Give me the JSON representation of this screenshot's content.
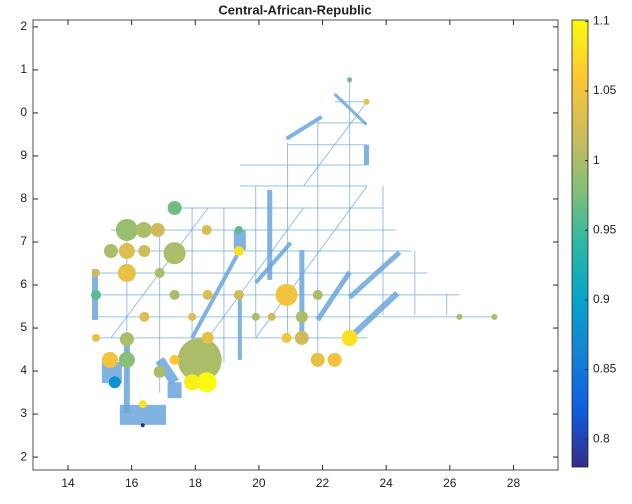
{
  "chart_data": {
    "type": "network",
    "title": "Central-African-Republic",
    "xlim": [
      12.9,
      29.4
    ],
    "ylim": [
      1.7,
      12.16
    ],
    "xticks": [
      14,
      16,
      18,
      20,
      22,
      24,
      26,
      28
    ],
    "yticks": [
      2,
      3,
      4,
      5,
      6,
      7,
      8,
      9,
      {
        "value": 10,
        "label": "0"
      },
      {
        "value": 11,
        "label": "1"
      },
      {
        "value": 12,
        "label": "2"
      }
    ],
    "clim": [
      0.78,
      1.101
    ],
    "cticks": [
      0.8,
      0.85,
      0.9,
      0.95,
      1,
      1.05,
      1.1
    ],
    "colormap": [
      "#352a87",
      "#0f5cdd",
      "#1481d6",
      "#06a4ca",
      "#2eb7a4",
      "#87bf77",
      "#d1bb59",
      "#fec832",
      "#f9fb0e"
    ],
    "edge_color": "#6aa6dc",
    "edges": {
      "x1": [
        14.85,
        14.85,
        14.85,
        14.85,
        15.35,
        15.35,
        17.35,
        19.4,
        19.4,
        20.9,
        21.85,
        22.38,
        15.85,
        16.88,
        17.9,
        18.9,
        19.9,
        20.9,
        21.85,
        22.85,
        23.9,
        24.9,
        25.9,
        15.35,
        17.9,
        19.9,
        21.4,
        15.63,
        15.38,
        16.88,
        17.35,
        19.4,
        14.85,
        15.85,
        21.35,
        20.34,
        22.85,
        21.85,
        22.85,
        23.38,
        20.87,
        23.38,
        19.9,
        19.4,
        17.9
      ],
      "y1": [
        4.77,
        5.26,
        5.77,
        6.28,
        6.79,
        7.28,
        7.79,
        8.3,
        8.79,
        9.26,
        9.77,
        10.26,
        3.7,
        3.5,
        3.7,
        4.2,
        4.8,
        4.8,
        4.3,
        4.8,
        5.3,
        5.3,
        5.3,
        4.77,
        4.26,
        4.77,
        8.3,
        2.98,
        4.21,
        4.26,
        3.74,
        7.28,
        6.37,
        4.74,
        6.81,
        8.21,
        5.71,
        5.19,
        4.77,
        9.26,
        9.4,
        9.73,
        6.05,
        5.77,
        4.77
      ],
      "x2": [
        23.4,
        27.4,
        26.3,
        25.3,
        24.8,
        24.3,
        23.9,
        23.4,
        23.4,
        23.4,
        23.4,
        23.4,
        15.85,
        16.88,
        17.9,
        18.9,
        19.9,
        20.9,
        21.85,
        22.85,
        23.9,
        24.9,
        25.9,
        18.4,
        21.4,
        23.4,
        23.4,
        17.08,
        15.38,
        17.35,
        17.35,
        19.4,
        14.85,
        15.85,
        21.35,
        20.34,
        24.42,
        22.85,
        24.35,
        23.38,
        21.97,
        22.38,
        21.0,
        19.4,
        19.4
      ],
      "y2": [
        4.77,
        5.26,
        5.77,
        6.28,
        6.79,
        7.28,
        7.79,
        8.3,
        8.79,
        9.26,
        9.77,
        10.26,
        7.3,
        7.3,
        7.8,
        7.8,
        8.3,
        9.3,
        9.8,
        10.8,
        8.3,
        6.8,
        5.8,
        7.79,
        7.79,
        8.3,
        10.26,
        2.98,
        3.72,
        3.74,
        3.37,
        6.81,
        5.19,
        3.02,
        4.72,
        6.12,
        6.76,
        6.3,
        5.81,
        8.79,
        9.91,
        10.44,
        6.98,
        4.26,
        6.81
      ],
      "width": [
        1,
        1,
        1,
        1,
        1,
        1,
        1,
        1,
        1,
        1,
        1,
        1,
        1,
        1,
        1,
        1,
        1,
        1,
        1,
        1,
        1,
        1,
        1,
        1,
        1,
        1,
        1,
        20,
        20,
        10,
        14,
        12,
        6,
        6,
        5,
        5,
        5,
        5,
        6,
        5,
        4,
        3,
        4,
        4,
        4
      ]
    },
    "nodes": {
      "x": [
        18.14,
        15.85,
        17.35,
        20.87,
        18.36,
        16.38,
        15.85,
        17.9,
        15.32,
        15.85,
        16.82,
        17.35,
        15.35,
        15.85,
        16.4,
        22.85,
        15.85,
        21.35,
        21.85,
        22.38,
        15.47,
        16.88,
        18.39,
        17.35,
        21.35,
        21.85,
        19.37,
        19.37,
        18.36,
        19.37,
        23.38,
        22.85,
        26.3,
        27.4,
        16.35,
        16.35,
        14.88,
        14.88,
        16.88,
        16.4,
        17.35,
        18.39,
        19.9,
        20.4,
        17.9,
        14.88,
        20.87
      ],
      "y": [
        4.26,
        7.28,
        6.74,
        5.77,
        3.74,
        7.28,
        6.28,
        3.74,
        4.26,
        4.26,
        7.28,
        7.79,
        6.79,
        6.79,
        6.79,
        4.77,
        4.74,
        4.77,
        4.26,
        4.26,
        3.74,
        3.98,
        4.77,
        4.26,
        5.26,
        5.77,
        5.77,
        6.79,
        7.28,
        7.28,
        10.26,
        10.77,
        5.26,
        5.26,
        2.74,
        3.23,
        5.77,
        6.28,
        6.28,
        5.26,
        5.77,
        5.77,
        5.26,
        5.26,
        5.26,
        4.77,
        4.77
      ],
      "size": [
        44,
        22,
        22,
        22,
        20,
        16,
        18,
        16,
        16,
        16,
        14,
        14,
        14,
        16,
        12,
        16,
        14,
        14,
        14,
        14,
        12,
        12,
        12,
        10,
        12,
        10,
        10,
        10,
        10,
        8,
        6,
        5,
        6,
        6,
        4,
        8,
        10,
        8,
        10,
        10,
        10,
        10,
        8,
        8,
        8,
        8,
        10
      ],
      "value": [
        1.0,
        0.99,
        1.0,
        1.05,
        1.1,
        1.0,
        1.04,
        1.09,
        1.05,
        0.98,
        1.02,
        0.97,
        1.0,
        1.03,
        1.02,
        1.08,
        1.0,
        1.02,
        1.04,
        1.05,
        0.88,
        1.0,
        1.04,
        1.06,
        1.0,
        1.0,
        1.02,
        1.08,
        1.03,
        0.96,
        1.04,
        0.97,
        1.0,
        1.0,
        0.78,
        1.08,
        0.96,
        1.02,
        1.0,
        1.03,
        1.0,
        1.03,
        1.0,
        1.02,
        1.03,
        1.04,
        1.05
      ]
    }
  }
}
